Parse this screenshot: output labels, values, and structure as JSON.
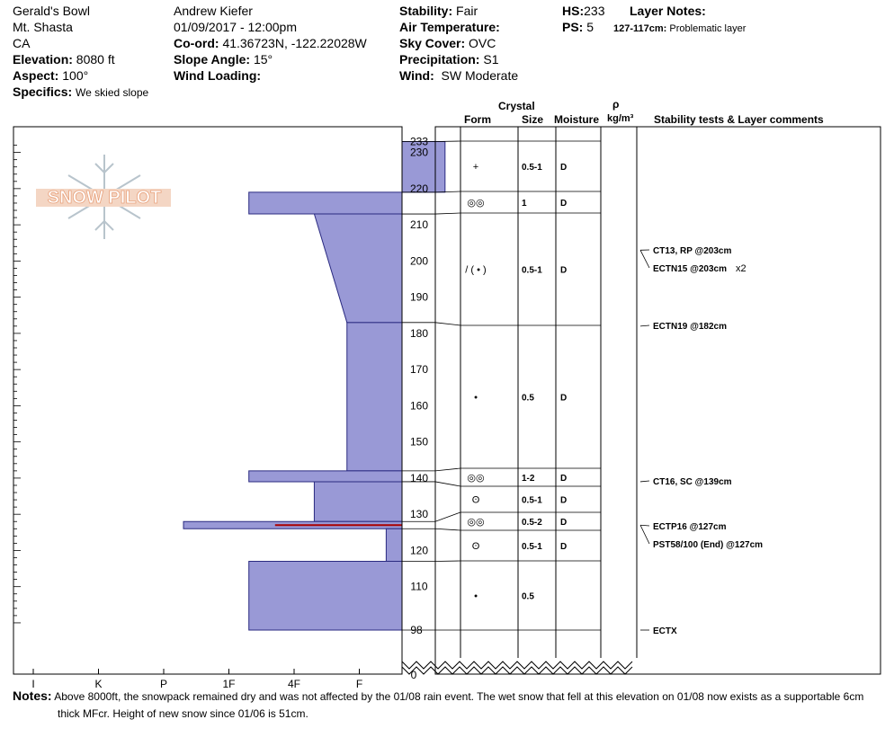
{
  "header": {
    "location": "Gerald's Bowl",
    "mountain": "Mt. Shasta",
    "state": "CA",
    "elevation_label": "Elevation:",
    "elevation_value": "8080 ft",
    "aspect_label": "Aspect:",
    "aspect_value": "100°",
    "specifics_label": "Specifics:",
    "specifics_value": "We skied slope",
    "observer": "Andrew Kiefer",
    "datetime": "01/09/2017 - 12:00pm",
    "coord_label": "Co-ord:",
    "coord_value": "41.36723N, -122.22028W",
    "slope_label": "Slope Angle:",
    "slope_value": "15°",
    "wind_loading_label": "Wind Loading:",
    "wind_loading_value": "",
    "stability_label": "Stability:",
    "stability_value": "Fair",
    "air_temp_label": "Air Temperature:",
    "air_temp_value": "",
    "sky_label": "Sky Cover:",
    "sky_value": "OVC",
    "precip_label": "Precipitation:",
    "precip_value": "S1",
    "wind_label": "Wind:",
    "wind_value": "SW Moderate",
    "hs_label": "HS:",
    "hs_value": "233",
    "ps_label": "PS:",
    "ps_value": "5",
    "layer_notes_label": "Layer Notes:",
    "layer_note_depth": "127-117cm:",
    "layer_note_text": "Problematic layer"
  },
  "columns": {
    "crystal": "Crystal",
    "form": "Form",
    "size": "Size",
    "moisture": "Moisture",
    "rho": "ρ",
    "density_unit": "kg/m³",
    "tests": "Stability tests & Layer comments"
  },
  "logo_text": "SNOW PILOT",
  "notes_label": "Notes:",
  "notes_line1": "Above 8000ft, the snowpack remained dry and was not affected by the 01/08 rain event.  The wet snow that fell at this elevation on 01/08 now exists as a supportable 6cm",
  "notes_line2": "thick MFcr.  Height of new snow since 01/06 is 51cm.",
  "colors": {
    "layer_fill": "#9999d6",
    "layer_stroke": "#2a2a80",
    "problem_line": "#aa0000",
    "grid": "#000000",
    "logo": "#e8a07a"
  },
  "chart_data": {
    "type": "snow_profile_hardness",
    "hardness_scale": [
      "I",
      "K",
      "P",
      "1F",
      "4F",
      "F"
    ],
    "hardness_note": "Hardness shown as bar length: F (fist) short, I (ice) long; values are index 0-6 where 6 = F edge",
    "depth_axis": {
      "unit": "cm",
      "ticks": [
        110,
        120,
        130,
        140,
        150,
        160,
        170,
        180,
        190,
        200,
        210,
        220,
        230
      ],
      "top_label": "233",
      "bottom_label": "98",
      "zero_label": "0"
    },
    "layers": [
      {
        "top": 233,
        "bottom": 219,
        "hardness_top": 6.6,
        "hardness_bottom": 6.6,
        "form": "+",
        "size": "0.5-1",
        "moisture": "D"
      },
      {
        "top": 219,
        "bottom": 213,
        "hardness_top": 3.6,
        "hardness_bottom": 3.6,
        "form": "MFcr",
        "size": "1",
        "moisture": "D"
      },
      {
        "top": 213,
        "bottom": 183,
        "hardness_top": 4.6,
        "hardness_bottom": 5.1,
        "form": "/ ( • )",
        "size": "0.5-1",
        "moisture": "D"
      },
      {
        "top": 183,
        "bottom": 142,
        "hardness_top": 5.1,
        "hardness_bottom": 5.1,
        "form": "•",
        "size": "0.5",
        "moisture": "D"
      },
      {
        "top": 142,
        "bottom": 139,
        "hardness_top": 3.6,
        "hardness_bottom": 3.6,
        "form": "MFcr",
        "size": "1-2",
        "moisture": "D"
      },
      {
        "top": 139,
        "bottom": 128,
        "hardness_top": 4.6,
        "hardness_bottom": 4.6,
        "form": "FC",
        "size": "0.5-1",
        "moisture": "D"
      },
      {
        "top": 128,
        "bottom": 126,
        "hardness_top": 2.6,
        "hardness_bottom": 2.6,
        "form": "MFcr",
        "size": "0.5-2",
        "moisture": "D"
      },
      {
        "top": 126,
        "bottom": 117,
        "hardness_top": 5.7,
        "hardness_bottom": 5.7,
        "form": "FC",
        "size": "0.5-1",
        "moisture": "D"
      },
      {
        "top": 117,
        "bottom": 98,
        "hardness_top": 3.6,
        "hardness_bottom": 3.6,
        "form": "•",
        "size": "0.5",
        "moisture": ""
      }
    ],
    "problem_layer_depth": 127,
    "stability_tests": [
      {
        "depth": 203,
        "text": "CT13, RP @203cm",
        "mult": ""
      },
      {
        "depth": 203,
        "text": "ECTN15 @203cm",
        "mult": "x2"
      },
      {
        "depth": 182,
        "text": "ECTN19 @182cm",
        "mult": ""
      },
      {
        "depth": 139,
        "text": "CT16, SC @139cm",
        "mult": ""
      },
      {
        "depth": 127,
        "text": "ECTP16 @127cm",
        "mult": ""
      },
      {
        "depth": 127,
        "text": "PST58/100 (End) @127cm",
        "mult": ""
      },
      {
        "depth": 98,
        "text": "ECTX",
        "mult": ""
      }
    ]
  }
}
